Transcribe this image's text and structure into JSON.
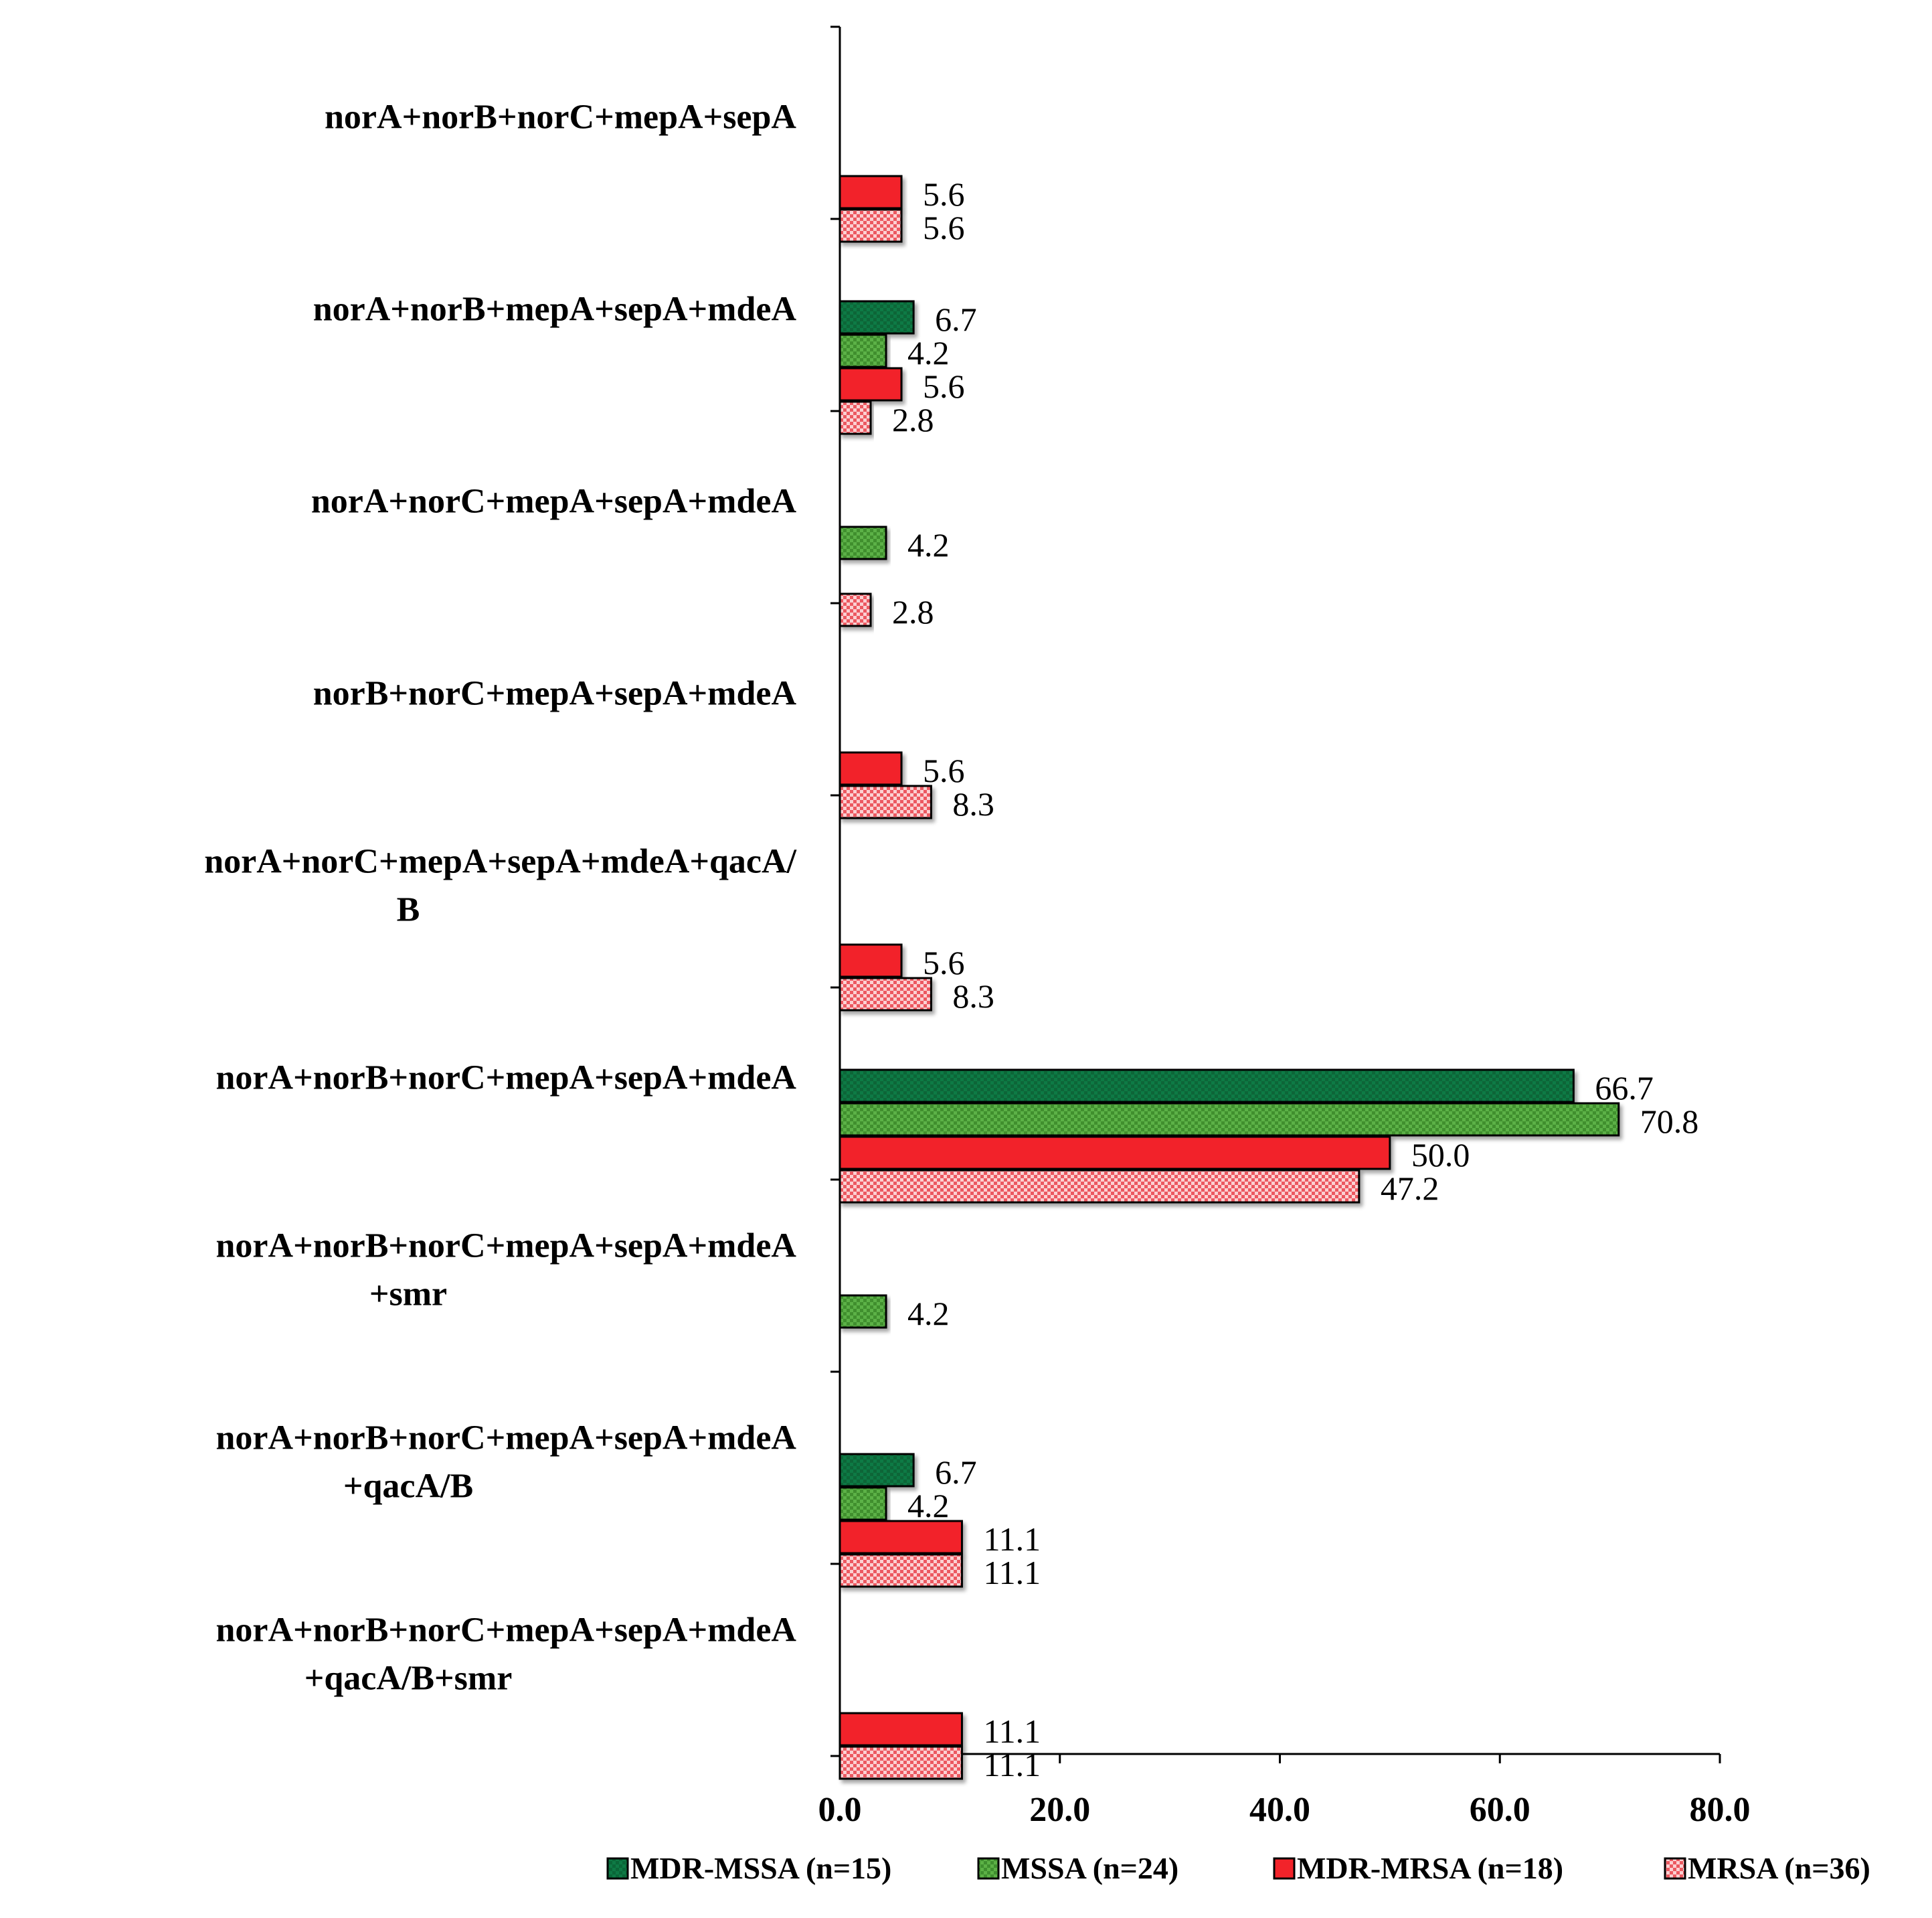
{
  "chart_data": {
    "type": "bar",
    "orientation": "horizontal",
    "categories": [
      [
        "norA+norB+norC+mepA+sepA"
      ],
      [
        "norA+norB+mepA+sepA+mdeA"
      ],
      [
        "norA+norC+mepA+sepA+mdeA"
      ],
      [
        "norB+norC+mepA+sepA+mdeA"
      ],
      [
        "norA+norC+mepA+sepA+mdeA+qacA/",
        "B"
      ],
      [
        "norA+norB+norC+mepA+sepA+mdeA"
      ],
      [
        "norA+norB+norC+mepA+sepA+mdeA",
        "+smr"
      ],
      [
        "norA+norB+norC+mepA+sepA+mdeA",
        "+qacA/B"
      ],
      [
        "norA+norB+norC+mepA+sepA+mdeA",
        "+qacA/B+smr"
      ]
    ],
    "series": [
      {
        "name": "MDR-MSSA (n=15)",
        "color": "#0e7a45",
        "pattern": "dark-green-texture",
        "values": [
          null,
          6.7,
          null,
          null,
          null,
          66.7,
          null,
          6.7,
          null
        ]
      },
      {
        "name": "MSSA (n=24)",
        "color": "#5cb146",
        "pattern": "light-green-dots",
        "values": [
          null,
          4.2,
          4.2,
          null,
          null,
          70.8,
          4.2,
          4.2,
          null
        ]
      },
      {
        "name": "MDR-MRSA (n=18)",
        "color": "#f2232a",
        "pattern": "red-solid",
        "values": [
          5.6,
          5.6,
          null,
          5.6,
          5.6,
          50.0,
          null,
          11.1,
          11.1
        ]
      },
      {
        "name": "MRSA (n=36)",
        "color": "#f47c80",
        "pattern": "pink-checker",
        "values": [
          5.6,
          2.8,
          2.8,
          8.3,
          8.3,
          47.2,
          null,
          11.1,
          11.1
        ]
      }
    ],
    "value_labels": [
      [
        null,
        "6.7",
        null,
        null,
        null,
        "66.7",
        null,
        "6.7",
        null
      ],
      [
        null,
        "4.2",
        "4.2",
        null,
        null,
        "70.8",
        "4.2",
        "4.2",
        null
      ],
      [
        "5.6",
        "5.6",
        null,
        "5.6",
        "5.6",
        "50.0",
        null,
        "11.1",
        "11.1"
      ],
      [
        "5.6",
        "2.8",
        "2.8",
        "8.3",
        "8.3",
        "47.2",
        null,
        "11.1",
        "11.1"
      ]
    ],
    "xticks": [
      "0.0",
      "20.0",
      "40.0",
      "60.0",
      "80.0"
    ],
    "xlim": [
      0,
      80
    ],
    "title": "",
    "xlabel": "",
    "ylabel": "",
    "grid": false,
    "legend_position": "bottom"
  }
}
